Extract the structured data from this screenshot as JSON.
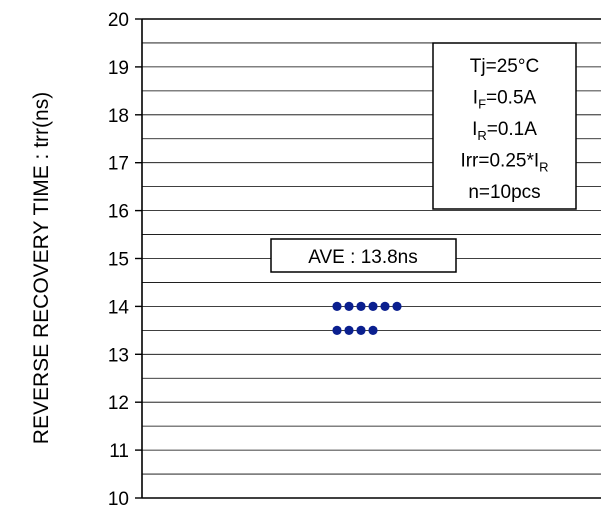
{
  "chart_data": {
    "type": "scatter",
    "title": "",
    "xlabel": "",
    "ylabel": "REVERSE RECOVERY TIME : trr(ns)",
    "ylim": [
      10,
      20
    ],
    "y_ticks": [
      "10",
      "11",
      "12",
      "13",
      "14",
      "15",
      "16",
      "17",
      "18",
      "19",
      "20"
    ],
    "grid": true,
    "minor_grid_step": 0.5,
    "series": [
      {
        "values": [
          14.0,
          14.0,
          14.0,
          14.0,
          14.0,
          14.0,
          13.5,
          13.5,
          13.5,
          13.5
        ]
      }
    ],
    "annotations": {
      "average_label": "AVE : 13.8ns",
      "conditions": [
        {
          "main": "Tj=25°C",
          "sub": ""
        },
        {
          "main": "I",
          "sub": "F",
          "suffix": "=0.5A"
        },
        {
          "main": "I",
          "sub": "R",
          "suffix": "=0.1A"
        },
        {
          "main": "Irr=0.25*I",
          "sub": "R",
          "suffix": ""
        },
        {
          "main": "n=10pcs",
          "sub": ""
        }
      ]
    },
    "colors": {
      "points": "#0a1f8f",
      "axis": "#000000",
      "grid": "#000000"
    }
  }
}
